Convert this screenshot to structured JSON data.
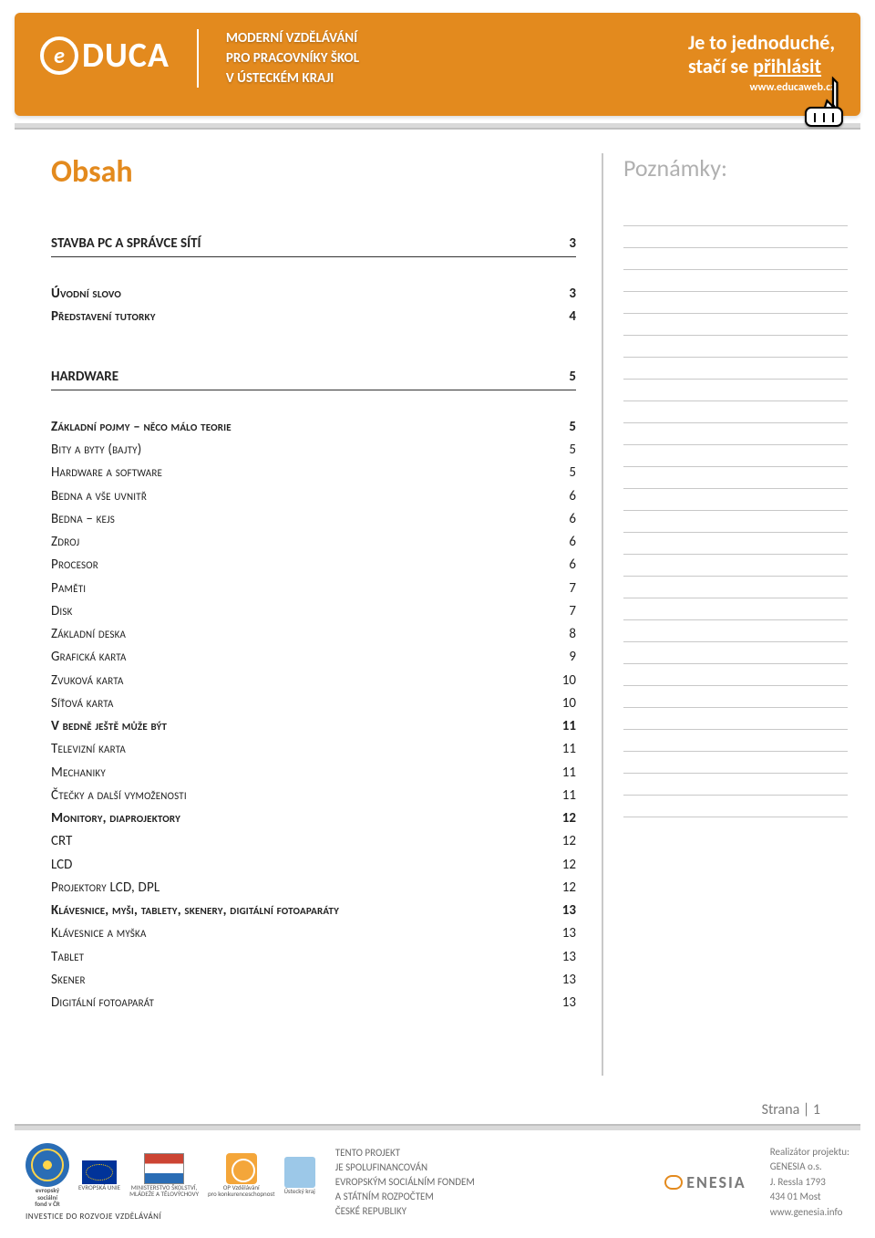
{
  "colors": {
    "accent": "#e38a1e",
    "rule": "#d9d9d9",
    "muted": "#b0b0b0"
  },
  "header": {
    "logo_e": "e",
    "logo_text": "DUCA",
    "tagline_l1": "MODERNÍ VZDĚLÁVÁNÍ",
    "tagline_l2": "PRO PRACOVNÍKY ŠKOL",
    "tagline_l3": "V ÚSTECKÉM KRAJI",
    "cta_l1": "Je to jednoduché,",
    "cta_l2a": "stačí se ",
    "cta_l2b": "přihlásit",
    "cta_url": "www.educaweb.cz"
  },
  "main": {
    "title": "Obsah"
  },
  "aside": {
    "title": "Poznámky:",
    "line_count": 28
  },
  "toc": [
    {
      "type": "section",
      "label": "STAVBA PC A SPRÁVCE SÍTÍ",
      "page": "3"
    },
    {
      "type": "gap"
    },
    {
      "type": "item",
      "bold": true,
      "sc": true,
      "label": "Úvodní slovo",
      "page": "3"
    },
    {
      "type": "item",
      "bold": true,
      "sc": true,
      "label": "Představení tutorky",
      "page": "4"
    },
    {
      "type": "gap"
    },
    {
      "type": "section",
      "label": "HARDWARE",
      "page": "5"
    },
    {
      "type": "gap"
    },
    {
      "type": "item",
      "bold": true,
      "sc": true,
      "label": "Základní pojmy – něco málo teorie",
      "page": "5"
    },
    {
      "type": "item",
      "sc": true,
      "label": "Bity a byty (bajty)",
      "page": "5"
    },
    {
      "type": "item",
      "sc": true,
      "label": "Hardware a software",
      "page": "5"
    },
    {
      "type": "item",
      "sc": true,
      "label": "Bedna a vše uvnitř",
      "page": "6"
    },
    {
      "type": "item",
      "sc": true,
      "label": "Bedna – kejs",
      "page": "6"
    },
    {
      "type": "item",
      "sc": true,
      "label": "Zdroj",
      "page": "6"
    },
    {
      "type": "item",
      "sc": true,
      "label": "Procesor",
      "page": "6"
    },
    {
      "type": "item",
      "sc": true,
      "label": "Paměti",
      "page": "7"
    },
    {
      "type": "item",
      "sc": true,
      "label": "Disk",
      "page": "7"
    },
    {
      "type": "item",
      "sc": true,
      "label": "Základní deska",
      "page": "8"
    },
    {
      "type": "item",
      "sc": true,
      "label": "Grafická karta",
      "page": "9"
    },
    {
      "type": "item",
      "sc": true,
      "label": "Zvuková karta",
      "page": "10"
    },
    {
      "type": "item",
      "sc": true,
      "label": "Síťová karta",
      "page": "10"
    },
    {
      "type": "item",
      "bold": true,
      "sc": true,
      "label": "V bedně ještě může být",
      "page": "11"
    },
    {
      "type": "item",
      "sc": true,
      "label": "Televizní karta",
      "page": "11"
    },
    {
      "type": "item",
      "sc": true,
      "label": "Mechaniky",
      "page": "11"
    },
    {
      "type": "item",
      "sc": true,
      "label": "Čtečky a další vymoženosti",
      "page": "11"
    },
    {
      "type": "item",
      "bold": true,
      "sc": true,
      "label": "Monitory, diaprojektory",
      "page": "12"
    },
    {
      "type": "item",
      "label": "CRT",
      "page": "12"
    },
    {
      "type": "item",
      "label": "LCD",
      "page": "12"
    },
    {
      "type": "item",
      "sc": true,
      "label": "Projektory LCD, DPL",
      "page": "12"
    },
    {
      "type": "item",
      "bold": true,
      "sc": true,
      "label": "Klávesnice, myši, tablety, skenery, digitální fotoaparáty",
      "page": "13"
    },
    {
      "type": "item",
      "sc": true,
      "label": "Klávesnice a myška",
      "page": "13"
    },
    {
      "type": "item",
      "sc": true,
      "label": "Tablet",
      "page": "13"
    },
    {
      "type": "item",
      "sc": true,
      "label": "Skener",
      "page": "13"
    },
    {
      "type": "item",
      "sc": true,
      "label": "Digitální fotoaparát",
      "page": "13"
    }
  ],
  "page_num": {
    "prefix": "Strana | ",
    "num": "1"
  },
  "footer": {
    "invest": "INVESTICE DO ROZVOJE VZDĚLÁVÁNÍ",
    "labels": {
      "esf_l1": "evropský",
      "esf_l2": "sociální",
      "esf_l3": "fond v ČR",
      "eu": "EVROPSKÁ UNIE",
      "msmt_l1": "MINISTERSTVO ŠKOLSTVÍ,",
      "msmt_l2": "MLÁDEŽE A TĚLOVÝCHOVY",
      "op_l1": "OP Vzdělávání",
      "op_l2": "pro konkurenceschopnost",
      "uk": "Ústecký kraj"
    },
    "project_l1": "TENTO PROJEKT",
    "project_l2": "JE SPOLUFINANCOVÁN",
    "project_l3": "EVROPSKÝM SOCIÁLNÍM FONDEM",
    "project_l4": "A STÁTNÍM ROZPOČTEM",
    "project_l5": "ČESKÉ REPUBLIKY",
    "genesia": "ENESIA",
    "real_l1": "Realizátor projektu:",
    "real_l2": "GENESIA o.s.",
    "real_l3": "J. Ressla 1793",
    "real_l4": "434 01 Most",
    "real_l5": "www.genesia.info"
  }
}
